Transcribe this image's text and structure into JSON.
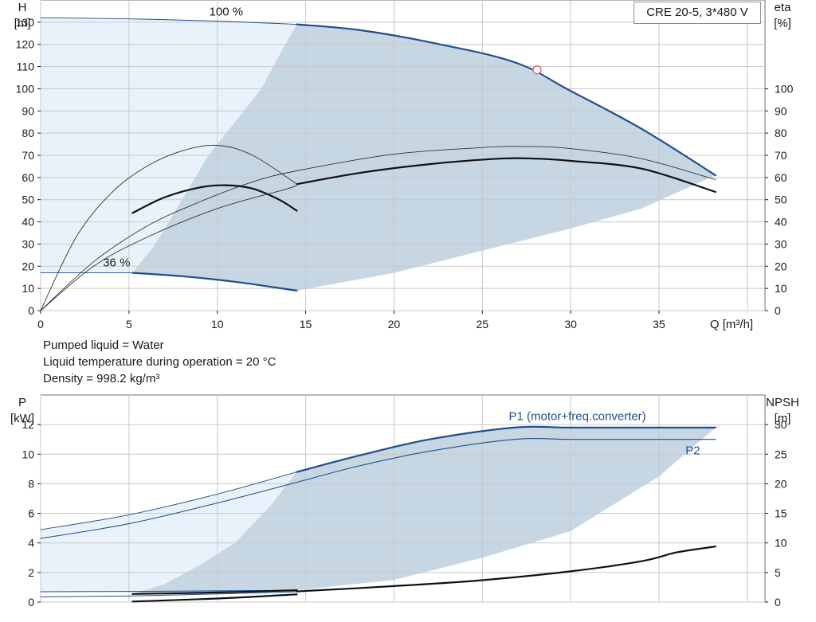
{
  "title": "CRE 20-5, 3*480 V",
  "info": [
    "Pumped liquid = Water",
    "Liquid temperature during operation = 20 °C",
    "Density = 998.2 kg/m³"
  ],
  "colors": {
    "blue": "#1f4e8c",
    "black": "#111111",
    "fill_light": "#e9f2fb",
    "fill_mid": "#c7d6e3",
    "grid": "#c8c8c8",
    "marker": "#e05050"
  },
  "chart_data": [
    {
      "type": "line",
      "id": "head",
      "xlabel": "Q [m³/h]",
      "ylabel_left": [
        "H",
        "[m]"
      ],
      "ylabel_right": [
        "eta",
        "[%]"
      ],
      "xlim": [
        0,
        41
      ],
      "x_ticks": [
        0,
        5,
        10,
        15,
        20,
        25,
        30,
        35
      ],
      "ylim": [
        0,
        140
      ],
      "y_ticks": [
        0,
        10,
        20,
        30,
        40,
        50,
        60,
        70,
        80,
        90,
        100,
        110,
        120,
        130
      ],
      "y2_ticks": [
        0,
        10,
        20,
        30,
        40,
        50,
        60,
        70,
        80,
        90,
        100
      ],
      "labels": [
        {
          "text": "100 %",
          "x": 10.5,
          "y": 133
        },
        {
          "text": "36 %",
          "x": 4.3,
          "y": 20
        }
      ],
      "duty_point": {
        "x": 28.1,
        "y": 108.5
      },
      "series": [
        {
          "role": "h100_thin",
          "x": [
            0,
            5,
            10,
            14.5
          ],
          "y": [
            132,
            131.5,
            130.5,
            129
          ]
        },
        {
          "role": "h100",
          "x": [
            14.5,
            18,
            22,
            26.8,
            30,
            34,
            38.2
          ],
          "y": [
            129,
            126.5,
            121,
            112,
            99,
            82,
            61
          ]
        },
        {
          "role": "h36_thin",
          "x": [
            0,
            5.2
          ],
          "y": [
            17,
            17
          ]
        },
        {
          "role": "h36",
          "x": [
            5.2,
            8,
            11,
            14.5
          ],
          "y": [
            17,
            15.5,
            13,
            9
          ]
        },
        {
          "role": "eta100_thin",
          "x": [
            0,
            3,
            6,
            9,
            12,
            14.5,
            20,
            25,
            27.5,
            30,
            34,
            38.2
          ],
          "y": [
            0,
            22,
            38,
            49,
            58,
            63,
            70.5,
            73.5,
            74,
            73,
            68.5,
            59
          ]
        },
        {
          "role": "eta100",
          "x": [
            14.5,
            18,
            22,
            26,
            28,
            30,
            34,
            38.2
          ],
          "y": [
            57,
            62,
            66,
            68.5,
            68.5,
            67.5,
            64,
            53.5
          ]
        },
        {
          "role": "eta36_thin",
          "x": [
            0,
            2,
            4,
            6,
            8,
            10,
            12,
            14.5
          ],
          "y": [
            0,
            33,
            53,
            65,
            72,
            74.5,
            70,
            57
          ]
        },
        {
          "role": "eta36",
          "x": [
            5.2,
            7,
            9,
            10.5,
            12,
            13.5,
            14.5
          ],
          "y": [
            44,
            51,
            55.5,
            56.5,
            55,
            50,
            45
          ]
        },
        {
          "role": "eta_thin_low",
          "x": [
            0,
            3,
            6,
            10,
            14,
            14.5
          ],
          "y": [
            0,
            20,
            33,
            46,
            55,
            57
          ]
        }
      ]
    },
    {
      "type": "line",
      "id": "power",
      "ylabel_left": [
        "P",
        "[kW]"
      ],
      "ylabel_right": [
        "NPSH",
        "[m]"
      ],
      "xlim": [
        0,
        41
      ],
      "ylim": [
        0,
        14
      ],
      "y_ticks": [
        0,
        2,
        4,
        6,
        8,
        10,
        12
      ],
      "y2lim": [
        0,
        35
      ],
      "y2_ticks": [
        0,
        5,
        10,
        15,
        20,
        25,
        30
      ],
      "labels": [
        {
          "text": "P1 (motor+freq.converter)",
          "x": 26.5,
          "y": 12.3
        },
        {
          "text": "P2",
          "x": 36.5,
          "y": 10.0
        }
      ],
      "series": [
        {
          "name": "P1 (motor+freq.converter)",
          "role": "p1_thin",
          "x": [
            0,
            5,
            10,
            14.5
          ],
          "y": [
            4.9,
            5.9,
            7.3,
            8.8
          ]
        },
        {
          "name": "P1 (motor+freq.converter)",
          "role": "p1",
          "x": [
            14.5,
            18,
            22,
            26.8,
            30,
            34,
            38.2
          ],
          "y": [
            8.8,
            9.9,
            11.0,
            11.8,
            11.8,
            11.8,
            11.8
          ]
        },
        {
          "name": "P2",
          "role": "p2",
          "x": [
            0,
            5,
            10,
            14.5,
            18,
            22,
            26.8,
            30,
            34,
            38.2
          ],
          "y": [
            4.3,
            5.3,
            6.7,
            8.1,
            9.2,
            10.2,
            11.0,
            11.0,
            11.0,
            11.0
          ]
        },
        {
          "role": "p_low_thin",
          "x": [
            0,
            5.2,
            10,
            14.5
          ],
          "y": [
            0.7,
            0.72,
            0.76,
            0.8
          ]
        },
        {
          "role": "p_low_thin2",
          "x": [
            0,
            5.2,
            10,
            14.5
          ],
          "y": [
            0.35,
            0.42,
            0.55,
            0.7
          ]
        },
        {
          "role": "p36",
          "x": [
            5.2,
            10,
            14.5
          ],
          "y": [
            0.55,
            0.65,
            0.8
          ]
        },
        {
          "role": "npsh_low",
          "x": [
            5.2,
            10,
            14.5
          ],
          "y2": [
            0.1,
            0.6,
            1.3
          ]
        },
        {
          "name": "NPSH",
          "role": "npsh",
          "x": [
            14.5,
            20,
            25,
            30,
            34,
            36,
            38.2
          ],
          "y2": [
            1.8,
            2.7,
            3.7,
            5.2,
            6.9,
            8.4,
            9.4
          ]
        }
      ]
    }
  ]
}
